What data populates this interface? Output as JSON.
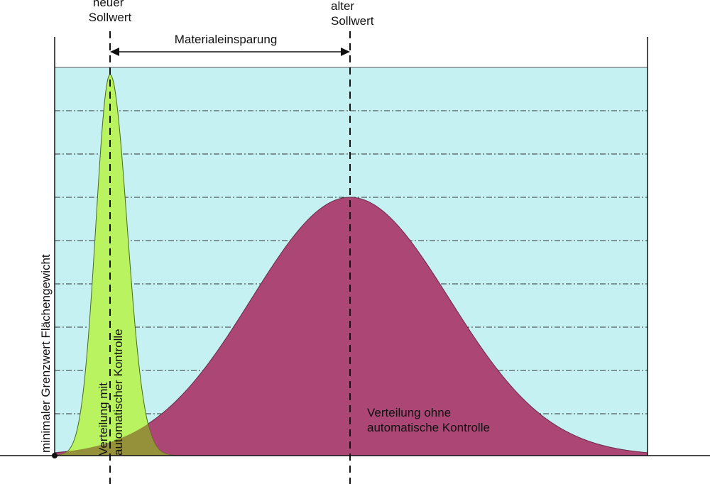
{
  "labels": {
    "new_setpoint": [
      "neuer",
      "Sollwert"
    ],
    "old_setpoint": [
      "alter",
      "Sollwert"
    ],
    "savings": "Materialeinsparung",
    "min_limit": "minimaler Grenzwert Flächengewicht",
    "with_control": [
      "Verteilung mit",
      "automatischer Kontrolle"
    ],
    "without_control": [
      "Verteilung ohne",
      "automatische Kontrolle"
    ]
  },
  "colors": {
    "background": "#c5f1f2",
    "with_control": "#b9f460",
    "without_control": "#ab4675",
    "overlap": "#95903a",
    "lines": "#111111"
  }
}
